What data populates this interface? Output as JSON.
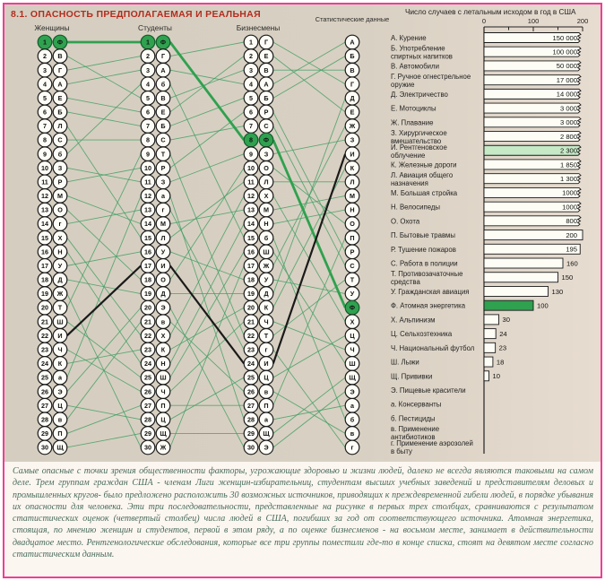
{
  "colors": {
    "frame_pink": "#f03d96",
    "line_green": "#3f9e63",
    "highlight_green": "#2fa14f",
    "highlight_green_dark": "#145c2d",
    "bar_light_green": "#c6e9c6",
    "title_red": "#b22d1f",
    "caption_green": "#476b5b"
  },
  "diagram": {
    "title": "8.1. ОПАСНОСТЬ ПРЕДПОЛАГАЕМАЯ И РЕАЛЬНАЯ",
    "highlight_letter_green": "Ф",
    "highlight_letter_black": "И",
    "columns": [
      {
        "name": "Женщины",
        "order": [
          "Ф",
          "В",
          "Г",
          "А",
          "Е",
          "Б",
          "Л",
          "С",
          "б",
          "З",
          "Р",
          "М",
          "О",
          "г",
          "Х",
          "Н",
          "У",
          "Д",
          "Ж",
          "Т",
          "Ш",
          "И",
          "Ч",
          "К",
          "а",
          "Э",
          "Ц",
          "в",
          "П",
          "Щ"
        ]
      },
      {
        "name": "Студенты",
        "order": [
          "Ф",
          "Г",
          "А",
          "б",
          "В",
          "Е",
          "Б",
          "С",
          "Т",
          "Р",
          "З",
          "а",
          "г",
          "М",
          "Л",
          "У",
          "И",
          "О",
          "Д",
          "Э",
          "в",
          "Х",
          "К",
          "Н",
          "Ш",
          "Ч",
          "П",
          "Ц",
          "Щ",
          "Ж"
        ]
      },
      {
        "name": "Бизнесмены",
        "order": [
          "Г",
          "Е",
          "В",
          "А",
          "Б",
          "Р",
          "С",
          "Ф",
          "З",
          "О",
          "Л",
          "Х",
          "М",
          "Н",
          "б",
          "Ш",
          "Ж",
          "У",
          "Д",
          "К",
          "Ч",
          "Т",
          "г",
          "И",
          "Ц",
          "в",
          "П",
          "а",
          "Щ",
          "Э"
        ]
      },
      {
        "name": "Статистические данные",
        "order": [
          "А",
          "Б",
          "В",
          "Г",
          "Д",
          "Е",
          "Ж",
          "З",
          "И",
          "К",
          "Л",
          "М",
          "Н",
          "О",
          "П",
          "Р",
          "С",
          "Т",
          "У",
          "Ф",
          "Х",
          "Ц",
          "Ч",
          "Ш",
          "Щ",
          "Э",
          "а",
          "б",
          "в",
          "г"
        ]
      }
    ]
  },
  "chart_data": {
    "type": "bar",
    "title": "Число случаев с летальным исходом в год в США",
    "xlabel": "",
    "ylabel": "",
    "axis": {
      "min": 0,
      "max": 200,
      "ticks": [
        0,
        100,
        200
      ]
    },
    "legend": "none",
    "items": [
      {
        "letter": "А",
        "label": [
          "А. Курение"
        ],
        "value": 150000,
        "display": "150 000"
      },
      {
        "letter": "Б",
        "label": [
          "Б. Употребление",
          "спиртных напитков"
        ],
        "value": 100000,
        "display": "100 000"
      },
      {
        "letter": "В",
        "label": [
          "В. Автомобили"
        ],
        "value": 50000,
        "display": "50 000"
      },
      {
        "letter": "Г",
        "label": [
          "Г. Ручное огнестрельное",
          "оружие"
        ],
        "value": 17000,
        "display": "17 000"
      },
      {
        "letter": "Д",
        "label": [
          "Д. Электричество"
        ],
        "value": 14000,
        "display": "14 000"
      },
      {
        "letter": "Е",
        "label": [
          "Е. Мотоциклы"
        ],
        "value": 3000,
        "display": "3 000"
      },
      {
        "letter": "Ж",
        "label": [
          "Ж. Плавание"
        ],
        "value": 3000,
        "display": "3 000"
      },
      {
        "letter": "З",
        "label": [
          "З. Хирургическое",
          "вмешательство"
        ],
        "value": 2800,
        "display": "2 800"
      },
      {
        "letter": "И",
        "label": [
          "И. Рентгеновское",
          "облучение"
        ],
        "value": 2300,
        "display": "2 300"
      },
      {
        "letter": "К",
        "label": [
          "К. Железные дороги"
        ],
        "value": 1850,
        "display": "1 850"
      },
      {
        "letter": "Л",
        "label": [
          "Л. Авиация общего",
          "назначения"
        ],
        "value": 1300,
        "display": "1 300"
      },
      {
        "letter": "М",
        "label": [
          "М. Большая стройка"
        ],
        "value": 1000,
        "display": "1000"
      },
      {
        "letter": "Н",
        "label": [
          "Н. Велосипеды"
        ],
        "value": 1000,
        "display": "1000"
      },
      {
        "letter": "О",
        "label": [
          "О. Охота"
        ],
        "value": 800,
        "display": "800"
      },
      {
        "letter": "П",
        "label": [
          "П. Бытовые травмы"
        ],
        "value": 200,
        "display": "200"
      },
      {
        "letter": "Р",
        "label": [
          "Р. Тушение пожаров"
        ],
        "value": 195,
        "display": "195"
      },
      {
        "letter": "С",
        "label": [
          "С. Работа в полиции"
        ],
        "value": 160,
        "display": "160"
      },
      {
        "letter": "Т",
        "label": [
          "Т. Противозачаточные",
          "средства"
        ],
        "value": 150,
        "display": "150"
      },
      {
        "letter": "У",
        "label": [
          "У. Гражданская авиация"
        ],
        "value": 130,
        "display": "130"
      },
      {
        "letter": "Ф",
        "label": [
          "Ф. Атомная энергетика"
        ],
        "value": 100,
        "display": "100"
      },
      {
        "letter": "Х",
        "label": [
          "Х. Альпинизм"
        ],
        "value": 30,
        "display": "30"
      },
      {
        "letter": "Ц",
        "label": [
          "Ц. Сельхозтехника"
        ],
        "value": 24,
        "display": "24"
      },
      {
        "letter": "Ч",
        "label": [
          "Ч. Национальный футбол"
        ],
        "value": 23,
        "display": "23"
      },
      {
        "letter": "Ш",
        "label": [
          "Ш. Лыжи"
        ],
        "value": 18,
        "display": "18"
      },
      {
        "letter": "Щ",
        "label": [
          "Щ. Прививки"
        ],
        "value": 10,
        "display": "10"
      },
      {
        "letter": "Э",
        "label": [
          "Э. Пищевые красители"
        ],
        "value": null,
        "display": ""
      },
      {
        "letter": "а",
        "label": [
          "а. Консерванты"
        ],
        "value": null,
        "display": ""
      },
      {
        "letter": "б",
        "label": [
          "б. Пестициды"
        ],
        "value": null,
        "display": ""
      },
      {
        "letter": "в",
        "label": [
          "в. Применение",
          "антибиотиков"
        ],
        "value": null,
        "display": ""
      },
      {
        "letter": "г",
        "label": [
          "г. Применение аэрозолей",
          "в быту"
        ],
        "value": null,
        "display": ""
      }
    ]
  },
  "caption": "Самые опасные с точки зрения общественности факторы, угрожающие здоровью и жизни людей, далеко не всегда являются таковыми на самом деле. Трем группам граждан США - членам Лиги женщин-избирательниц, студентам высших учебных заведений и представителям деловых и промышленных кругов- было предложено расположить 30 возможных источников, приводящих к преждевременной гибели людей, в порядке убывания их опасности для человека. Эти три последовательности, представленные на рисунке в первых трех столбцах, сравниваются с результатом статистических оценок (четвертый столбец) числа людей в США, погибших за год от соответствующего источника. Атомная энергетика, стоящая, по мнению женщин и студентов, первой в этом ряду, а по оценке бизнесменов - на восьмом месте, занимает в действительности двадцатое место. Рентгенологические обследования, которые все три группы поместили где-то в конце списка, стоят на девятом месте согласно статистическим данным."
}
